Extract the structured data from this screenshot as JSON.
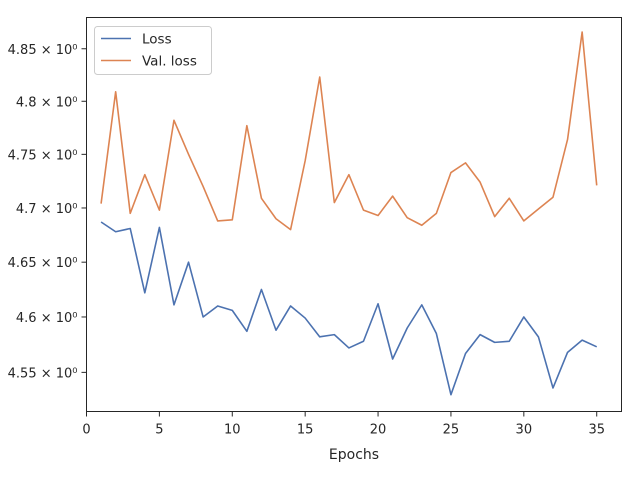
{
  "chart_data": {
    "type": "line",
    "title": "",
    "xlabel": "Epochs",
    "ylabel": "",
    "yscale": "log",
    "xlim": [
      0,
      36.7
    ],
    "ylim": [
      4.515,
      4.88
    ],
    "grid": false,
    "legend_position": "top-left",
    "x_ticks": [
      0,
      5,
      10,
      15,
      20,
      25,
      30,
      35
    ],
    "x_tick_labels": [
      "0",
      "5",
      "10",
      "15",
      "20",
      "25",
      "30",
      "35"
    ],
    "y_ticks": [
      4.55,
      4.6,
      4.65,
      4.7,
      4.75,
      4.8,
      4.85
    ],
    "y_tick_labels": [
      "4.55 × 10⁰",
      "4.6 × 10⁰",
      "4.65 × 10⁰",
      "4.7 × 10⁰",
      "4.75 × 10⁰",
      "4.8 × 10⁰",
      "4.85 × 10⁰"
    ],
    "x": [
      1,
      2,
      3,
      4,
      5,
      6,
      7,
      8,
      9,
      10,
      11,
      12,
      13,
      14,
      15,
      16,
      17,
      18,
      19,
      20,
      21,
      22,
      23,
      24,
      25,
      26,
      27,
      28,
      29,
      30,
      31,
      32,
      33,
      34,
      35
    ],
    "series": [
      {
        "name": "Loss",
        "color": "#4c72b0",
        "values": [
          4.687,
          4.678,
          4.681,
          4.622,
          4.682,
          4.611,
          4.65,
          4.6,
          4.61,
          4.606,
          4.587,
          4.625,
          4.588,
          4.61,
          4.599,
          4.582,
          4.584,
          4.572,
          4.578,
          4.612,
          4.562,
          4.59,
          4.611,
          4.585,
          4.53,
          4.567,
          4.584,
          4.577,
          4.578,
          4.6,
          4.582,
          4.536,
          4.568,
          4.579,
          4.573
        ]
      },
      {
        "name": "Val. loss",
        "color": "#dd8452",
        "values": [
          4.704,
          4.809,
          4.695,
          4.731,
          4.698,
          4.782,
          4.75,
          4.72,
          4.688,
          4.689,
          4.777,
          4.709,
          4.69,
          4.68,
          4.744,
          4.823,
          4.705,
          4.731,
          4.698,
          4.693,
          4.711,
          4.691,
          4.684,
          4.695,
          4.733,
          4.742,
          4.724,
          4.692,
          4.709,
          4.688,
          4.699,
          4.71,
          4.764,
          4.866,
          4.721
        ]
      }
    ]
  }
}
